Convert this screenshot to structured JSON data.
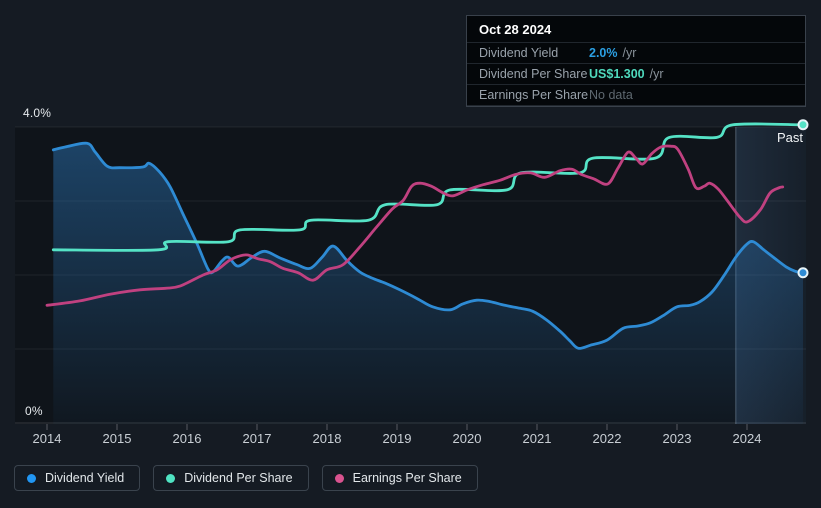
{
  "colors": {
    "background": "#151B23",
    "plot_tint": "rgba(0,0,0,0.25)",
    "gridline": "rgba(255,255,255,0.07)",
    "axis_line": "rgba(255,255,255,0.16)",
    "tick": "rgba(255,255,255,0.28)",
    "past_divider": "rgba(185,205,225,0.35)",
    "past_band_left": "rgba(110,165,230,0.17)",
    "past_band_right": "rgba(110,165,230,0.08)",
    "area_top": "rgba(43,118,185,0.50)",
    "area_bottom": "rgba(43,118,185,0.04)",
    "marker_stroke": "#E8F4F8"
  },
  "tooltip": {
    "date": "Oct 28 2024",
    "rows": [
      {
        "label": "Dividend Yield",
        "value": "2.0%",
        "suffix": "/yr",
        "value_color": "#2B9FE3"
      },
      {
        "label": "Dividend Per Share",
        "value": "US$1.300",
        "suffix": "/yr",
        "value_color": "#4FD9BD"
      },
      {
        "label": "Earnings Per Share",
        "value": "No data",
        "suffix": "",
        "value_color": "#5E6870"
      }
    ]
  },
  "legend": {
    "items": [
      {
        "label": "Dividend Yield",
        "color": "#2196F3"
      },
      {
        "label": "Dividend Per Share",
        "color": "#4FE3C2"
      },
      {
        "label": "Earnings Per Share",
        "color": "#D9538F"
      }
    ]
  },
  "chart_data": {
    "type": "line",
    "x_ticks": [
      "2014",
      "2015",
      "2016",
      "2017",
      "2018",
      "2019",
      "2020",
      "2021",
      "2022",
      "2023",
      "2024"
    ],
    "y_axis": {
      "top_label": "4.0%",
      "bottom_label": "0%",
      "min": 0,
      "max": 4,
      "unit": "%",
      "gridlines_pct": [
        0,
        1,
        2,
        3,
        4
      ]
    },
    "past_label": "Past",
    "past_start_year": 2023.84,
    "series": [
      {
        "name": "Dividend Yield",
        "color": "#2E8BD4",
        "area": true,
        "end_marker": true,
        "points": [
          [
            2014.09,
            3.69
          ],
          [
            2014.26,
            3.73
          ],
          [
            2014.57,
            3.78
          ],
          [
            2014.69,
            3.66
          ],
          [
            2014.86,
            3.47
          ],
          [
            2015.04,
            3.45
          ],
          [
            2015.37,
            3.46
          ],
          [
            2015.46,
            3.51
          ],
          [
            2015.61,
            3.39
          ],
          [
            2015.76,
            3.19
          ],
          [
            2015.93,
            2.85
          ],
          [
            2016.14,
            2.43
          ],
          [
            2016.3,
            2.08
          ],
          [
            2016.37,
            2.04
          ],
          [
            2016.5,
            2.19
          ],
          [
            2016.59,
            2.24
          ],
          [
            2016.73,
            2.12
          ],
          [
            2016.93,
            2.24
          ],
          [
            2017.11,
            2.32
          ],
          [
            2017.33,
            2.23
          ],
          [
            2017.57,
            2.14
          ],
          [
            2017.76,
            2.09
          ],
          [
            2017.93,
            2.24
          ],
          [
            2018.09,
            2.39
          ],
          [
            2018.29,
            2.19
          ],
          [
            2018.47,
            2.04
          ],
          [
            2018.64,
            1.96
          ],
          [
            2018.83,
            1.89
          ],
          [
            2019.04,
            1.8
          ],
          [
            2019.29,
            1.68
          ],
          [
            2019.51,
            1.57
          ],
          [
            2019.76,
            1.53
          ],
          [
            2019.94,
            1.61
          ],
          [
            2020.14,
            1.66
          ],
          [
            2020.33,
            1.64
          ],
          [
            2020.54,
            1.59
          ],
          [
            2020.76,
            1.55
          ],
          [
            2020.94,
            1.51
          ],
          [
            2021.14,
            1.39
          ],
          [
            2021.33,
            1.24
          ],
          [
            2021.47,
            1.11
          ],
          [
            2021.59,
            1.01
          ],
          [
            2021.76,
            1.05
          ],
          [
            2022.0,
            1.12
          ],
          [
            2022.23,
            1.28
          ],
          [
            2022.43,
            1.31
          ],
          [
            2022.61,
            1.35
          ],
          [
            2022.8,
            1.45
          ],
          [
            2023.0,
            1.57
          ],
          [
            2023.19,
            1.59
          ],
          [
            2023.33,
            1.64
          ],
          [
            2023.5,
            1.77
          ],
          [
            2023.67,
            1.99
          ],
          [
            2023.84,
            2.24
          ],
          [
            2023.99,
            2.41
          ],
          [
            2024.09,
            2.45
          ],
          [
            2024.24,
            2.34
          ],
          [
            2024.39,
            2.23
          ],
          [
            2024.56,
            2.11
          ],
          [
            2024.69,
            2.05
          ],
          [
            2024.8,
            2.03
          ]
        ]
      },
      {
        "name": "Dividend Per Share",
        "color": "#55E3C6",
        "area": false,
        "end_marker": true,
        "points": [
          [
            2014.09,
            2.34
          ],
          [
            2015.59,
            2.34
          ],
          [
            2015.73,
            2.45
          ],
          [
            2016.59,
            2.45
          ],
          [
            2016.76,
            2.61
          ],
          [
            2017.61,
            2.61
          ],
          [
            2017.77,
            2.74
          ],
          [
            2018.59,
            2.74
          ],
          [
            2018.83,
            2.95
          ],
          [
            2019.57,
            2.95
          ],
          [
            2019.76,
            3.15
          ],
          [
            2020.57,
            3.15
          ],
          [
            2020.77,
            3.38
          ],
          [
            2021.61,
            3.38
          ],
          [
            2021.8,
            3.58
          ],
          [
            2022.69,
            3.58
          ],
          [
            2022.89,
            3.86
          ],
          [
            2023.57,
            3.86
          ],
          [
            2023.8,
            4.03
          ],
          [
            2024.8,
            4.03
          ]
        ]
      },
      {
        "name": "Earnings Per Share",
        "color": "#C04180",
        "area": false,
        "end_marker": false,
        "points": [
          [
            2014.0,
            1.59
          ],
          [
            2014.47,
            1.65
          ],
          [
            2014.9,
            1.74
          ],
          [
            2015.33,
            1.8
          ],
          [
            2015.69,
            1.82
          ],
          [
            2015.9,
            1.85
          ],
          [
            2016.23,
            2.0
          ],
          [
            2016.43,
            2.07
          ],
          [
            2016.61,
            2.2
          ],
          [
            2016.76,
            2.26
          ],
          [
            2016.87,
            2.27
          ],
          [
            2017.01,
            2.22
          ],
          [
            2017.19,
            2.18
          ],
          [
            2017.37,
            2.09
          ],
          [
            2017.59,
            2.03
          ],
          [
            2017.8,
            1.93
          ],
          [
            2018.0,
            2.07
          ],
          [
            2018.23,
            2.14
          ],
          [
            2018.47,
            2.38
          ],
          [
            2018.71,
            2.65
          ],
          [
            2018.93,
            2.89
          ],
          [
            2019.09,
            3.01
          ],
          [
            2019.21,
            3.2
          ],
          [
            2019.33,
            3.24
          ],
          [
            2019.49,
            3.2
          ],
          [
            2019.66,
            3.11
          ],
          [
            2019.8,
            3.07
          ],
          [
            2020.0,
            3.15
          ],
          [
            2020.23,
            3.22
          ],
          [
            2020.47,
            3.28
          ],
          [
            2020.7,
            3.36
          ],
          [
            2020.91,
            3.38
          ],
          [
            2021.11,
            3.32
          ],
          [
            2021.33,
            3.41
          ],
          [
            2021.5,
            3.43
          ],
          [
            2021.63,
            3.36
          ],
          [
            2021.81,
            3.3
          ],
          [
            2022.01,
            3.23
          ],
          [
            2022.16,
            3.45
          ],
          [
            2022.3,
            3.66
          ],
          [
            2022.41,
            3.58
          ],
          [
            2022.51,
            3.5
          ],
          [
            2022.64,
            3.64
          ],
          [
            2022.77,
            3.73
          ],
          [
            2022.91,
            3.74
          ],
          [
            2023.01,
            3.7
          ],
          [
            2023.16,
            3.43
          ],
          [
            2023.27,
            3.18
          ],
          [
            2023.39,
            3.2
          ],
          [
            2023.47,
            3.24
          ],
          [
            2023.59,
            3.16
          ],
          [
            2023.73,
            2.99
          ],
          [
            2023.9,
            2.78
          ],
          [
            2024.01,
            2.72
          ],
          [
            2024.19,
            2.88
          ],
          [
            2024.33,
            3.11
          ],
          [
            2024.46,
            3.18
          ],
          [
            2024.51,
            3.19
          ]
        ]
      }
    ]
  }
}
